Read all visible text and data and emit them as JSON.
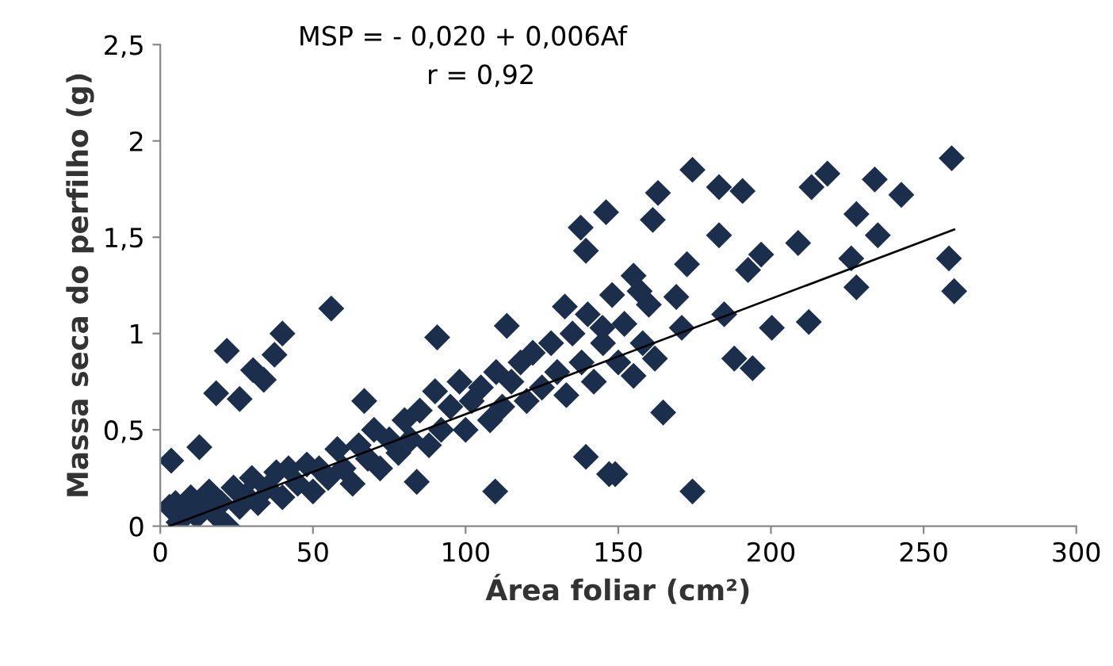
{
  "chart_data": {
    "type": "scatter",
    "xlabel": "Área foliar (cm²)",
    "ylabel": "Massa seca do perfilho (g)",
    "annotations": [
      "MSP = - 0,020 + 0,006Af",
      "r = 0,92"
    ],
    "xlim": [
      0,
      300
    ],
    "xticks": [
      0,
      50,
      100,
      150,
      200,
      250,
      300
    ],
    "ylim": [
      0,
      2.5
    ],
    "yticks": [
      {
        "value": 0,
        "label": "0"
      },
      {
        "value": 0.5,
        "label": "0,5"
      },
      {
        "value": 1,
        "label": "1"
      },
      {
        "value": 1.5,
        "label": "1,5"
      },
      {
        "value": 2,
        "label": "2"
      },
      {
        "value": 2.5,
        "label": "2,5"
      }
    ],
    "grid": false,
    "legend": false,
    "marker": "diamond",
    "series": [
      {
        "color": "#1b2f4d",
        "x": [
          3,
          5,
          6,
          8,
          10,
          12,
          14,
          16,
          18,
          20,
          22,
          24,
          26,
          28,
          30,
          32,
          35,
          38,
          40,
          42,
          45,
          48,
          50,
          52,
          55,
          58,
          60,
          63,
          65,
          68,
          70,
          72,
          75,
          78,
          80,
          82,
          85,
          88,
          90,
          92,
          95,
          98,
          100,
          102,
          105,
          108,
          110,
          112,
          115,
          118,
          120,
          122,
          125,
          128,
          130,
          133,
          135,
          138,
          140,
          142,
          145,
          148,
          150,
          152,
          155,
          158,
          160,
          3.6,
          12.8,
          21.8,
          18.3,
          26,
          30.4,
          33.9,
          37.4,
          40,
          56,
          66.8,
          90.7,
          113.5,
          109.7,
          84,
          139.4,
          147,
          146,
          137.7,
          139.4,
          132.5,
          174.3,
          183,
          190.7,
          163,
          213.3,
          218.5,
          234,
          242.7,
          259.2,
          228,
          235,
          183,
          161.3,
          258.3,
          260,
          228,
          226.3,
          208.9,
          196.8,
          192.5,
          172.5,
          212.4,
          200.3,
          188,
          194,
          164.7,
          149,
          174.3,
          162,
          155,
          170.8,
          184.7,
          157,
          169,
          144.8
        ],
        "values": [
          0.1,
          0.12,
          0.02,
          0.08,
          0.15,
          0.05,
          0.1,
          0.18,
          0.06,
          0.12,
          0.0,
          0.2,
          0.1,
          0.16,
          0.25,
          0.12,
          0.2,
          0.28,
          0.15,
          0.3,
          0.22,
          0.32,
          0.18,
          0.3,
          0.25,
          0.4,
          0.3,
          0.22,
          0.42,
          0.35,
          0.5,
          0.3,
          0.45,
          0.38,
          0.55,
          0.45,
          0.6,
          0.42,
          0.7,
          0.5,
          0.62,
          0.75,
          0.5,
          0.65,
          0.72,
          0.55,
          0.8,
          0.62,
          0.75,
          0.85,
          0.65,
          0.9,
          0.72,
          0.95,
          0.8,
          0.68,
          1.0,
          0.85,
          1.1,
          0.75,
          0.95,
          1.2,
          0.85,
          1.05,
          1.3,
          0.95,
          1.15,
          0.34,
          0.41,
          0.91,
          0.69,
          0.66,
          0.81,
          0.76,
          0.89,
          1.0,
          1.13,
          0.65,
          0.98,
          1.04,
          0.18,
          0.23,
          0.36,
          0.27,
          1.63,
          1.55,
          1.43,
          1.14,
          1.85,
          1.76,
          1.74,
          1.73,
          1.76,
          1.83,
          1.8,
          1.72,
          1.91,
          1.62,
          1.51,
          1.51,
          1.59,
          1.39,
          1.22,
          1.24,
          1.39,
          1.47,
          1.41,
          1.33,
          1.36,
          1.06,
          1.03,
          0.87,
          0.82,
          0.59,
          0.27,
          0.18,
          0.87,
          0.78,
          1.03,
          1.1,
          1.22,
          1.19,
          1.03
        ]
      },
      {
        "type": "line",
        "color": "#000000",
        "x": [
          3,
          260
        ],
        "values": [
          0,
          1.54
        ],
        "marker": "none",
        "line_style": "solid"
      }
    ]
  }
}
